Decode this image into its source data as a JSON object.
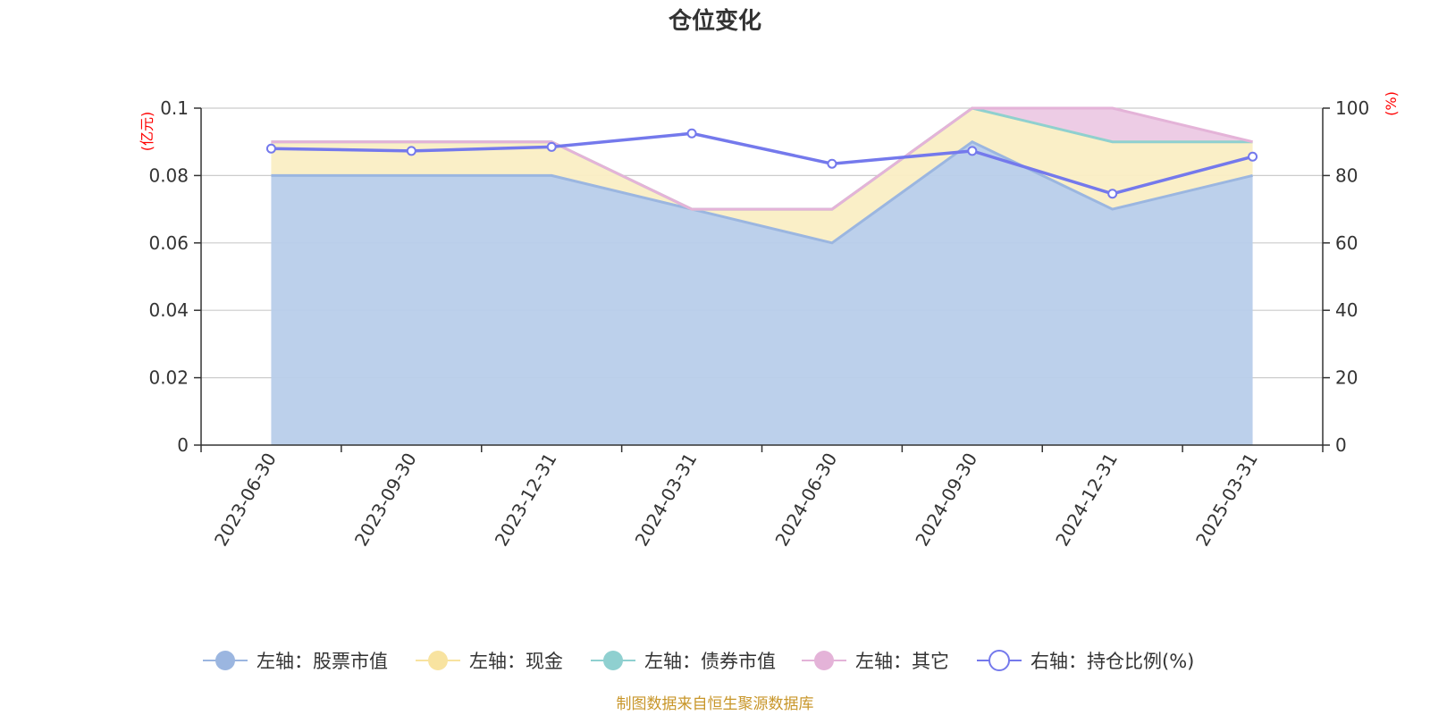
{
  "chart_data": {
    "type": "area",
    "title": "仓位变化",
    "source": "制图数据来自恒生聚源数据库",
    "categories": [
      "2023-06-30",
      "2023-09-30",
      "2023-12-31",
      "2024-03-31",
      "2024-06-30",
      "2024-09-30",
      "2024-12-31",
      "2025-03-31"
    ],
    "left_axis": {
      "unit": "(亿元)",
      "ylim": [
        0,
        0.1
      ],
      "ticks": [
        "0",
        "0.02",
        "0.04",
        "0.06",
        "0.08",
        "0.1"
      ]
    },
    "right_axis": {
      "unit": "(%)",
      "ylim": [
        0,
        100
      ],
      "ticks": [
        "0",
        "20",
        "40",
        "60",
        "80",
        "100"
      ]
    },
    "stacked": true,
    "grid": true,
    "legend_position": "bottom",
    "series": [
      {
        "name": "左轴：股票市值",
        "axis": "left",
        "kind": "area",
        "color": "#9bb6e0",
        "fill": "#b8cdea",
        "values": [
          0.08,
          0.08,
          0.08,
          0.07,
          0.06,
          0.09,
          0.07,
          0.08
        ]
      },
      {
        "name": "左轴：现金",
        "axis": "left",
        "kind": "area",
        "color": "#f8e3a0",
        "fill": "#faeec4",
        "values": [
          0.01,
          0.01,
          0.01,
          0.0,
          0.01,
          0.01,
          0.02,
          0.01
        ]
      },
      {
        "name": "左轴：债券市值",
        "axis": "left",
        "kind": "area",
        "color": "#8fd0d0",
        "fill": "#b7e2e2",
        "values": [
          0,
          0,
          0,
          0,
          0,
          0,
          0,
          0
        ]
      },
      {
        "name": "左轴：其它",
        "axis": "left",
        "kind": "area",
        "color": "#e4b3d8",
        "fill": "#ecc9e4",
        "values": [
          0.0,
          0.0,
          0.0,
          0.0,
          0.0,
          0.0,
          0.01,
          0.0
        ]
      },
      {
        "name": "右轴：持仓比例(%)",
        "axis": "right",
        "kind": "line",
        "color": "#7479ec",
        "values": [
          88.0,
          87.3,
          88.5,
          92.5,
          83.5,
          87.3,
          74.6,
          85.6
        ]
      }
    ]
  }
}
